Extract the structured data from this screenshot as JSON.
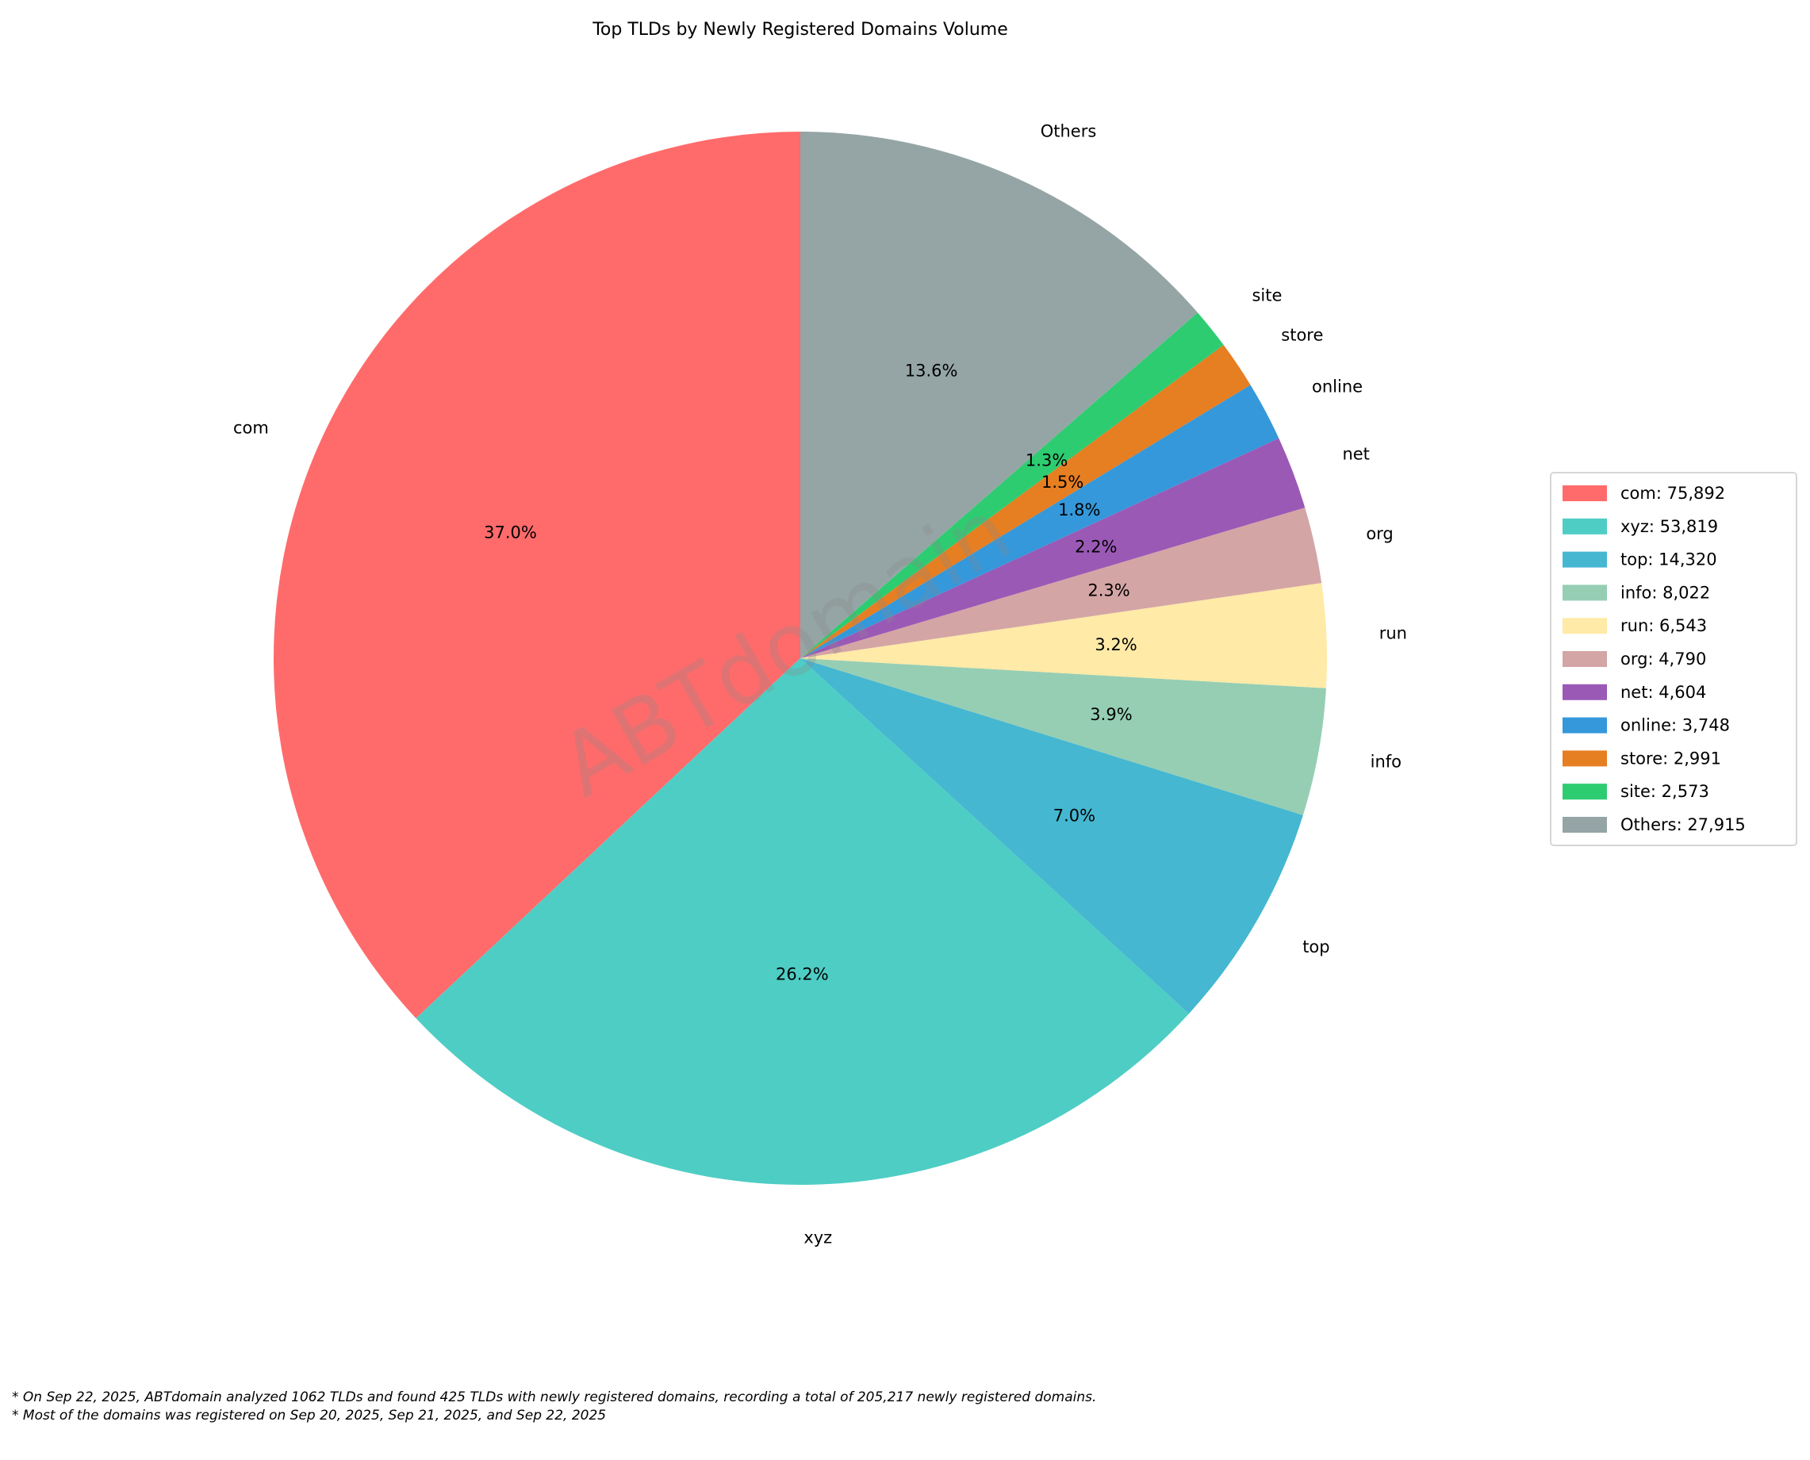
{
  "chart_data": {
    "type": "pie",
    "title": "Top TLDs by Newly Registered Domains Volume",
    "categories": [
      "com",
      "xyz",
      "top",
      "info",
      "run",
      "org",
      "net",
      "online",
      "store",
      "site",
      "Others"
    ],
    "values": [
      75892,
      53819,
      14320,
      8022,
      6543,
      4790,
      4604,
      3748,
      2991,
      2573,
      27915
    ],
    "pct_labels": [
      "37.0%",
      "26.2%",
      "7.0%",
      "3.9%",
      "3.2%",
      "2.3%",
      "2.2%",
      "1.8%",
      "1.5%",
      "1.3%",
      "13.6%"
    ],
    "legend_labels": [
      "com: 75,892",
      "xyz: 53,819",
      "top: 14,320",
      "info: 8,022",
      "run: 6,543",
      "org: 4,790",
      "net: 4,604",
      "online: 3,748",
      "store: 2,991",
      "site: 2,573",
      "Others: 27,915"
    ],
    "colors": [
      "#FF6B6B",
      "#4ECDC4",
      "#45B7D1",
      "#96CEB4",
      "#FFEAA7",
      "#D4A5A5",
      "#9B59B6",
      "#3498DB",
      "#E67E22",
      "#2ECC71",
      "#95A5A6"
    ],
    "start_angle_deg": 90,
    "direction": "counterclockwise",
    "legend_position": "right"
  },
  "watermark": "ABTdomain",
  "footnotes": [
    "* On Sep 22, 2025, ABTdomain analyzed 1062 TLDs and found 425 TLDs with newly registered domains, recording a total of 205,217 newly registered domains.",
    "* Most of the domains was registered on Sep 20, 2025, Sep 21, 2025, and Sep 22, 2025"
  ]
}
